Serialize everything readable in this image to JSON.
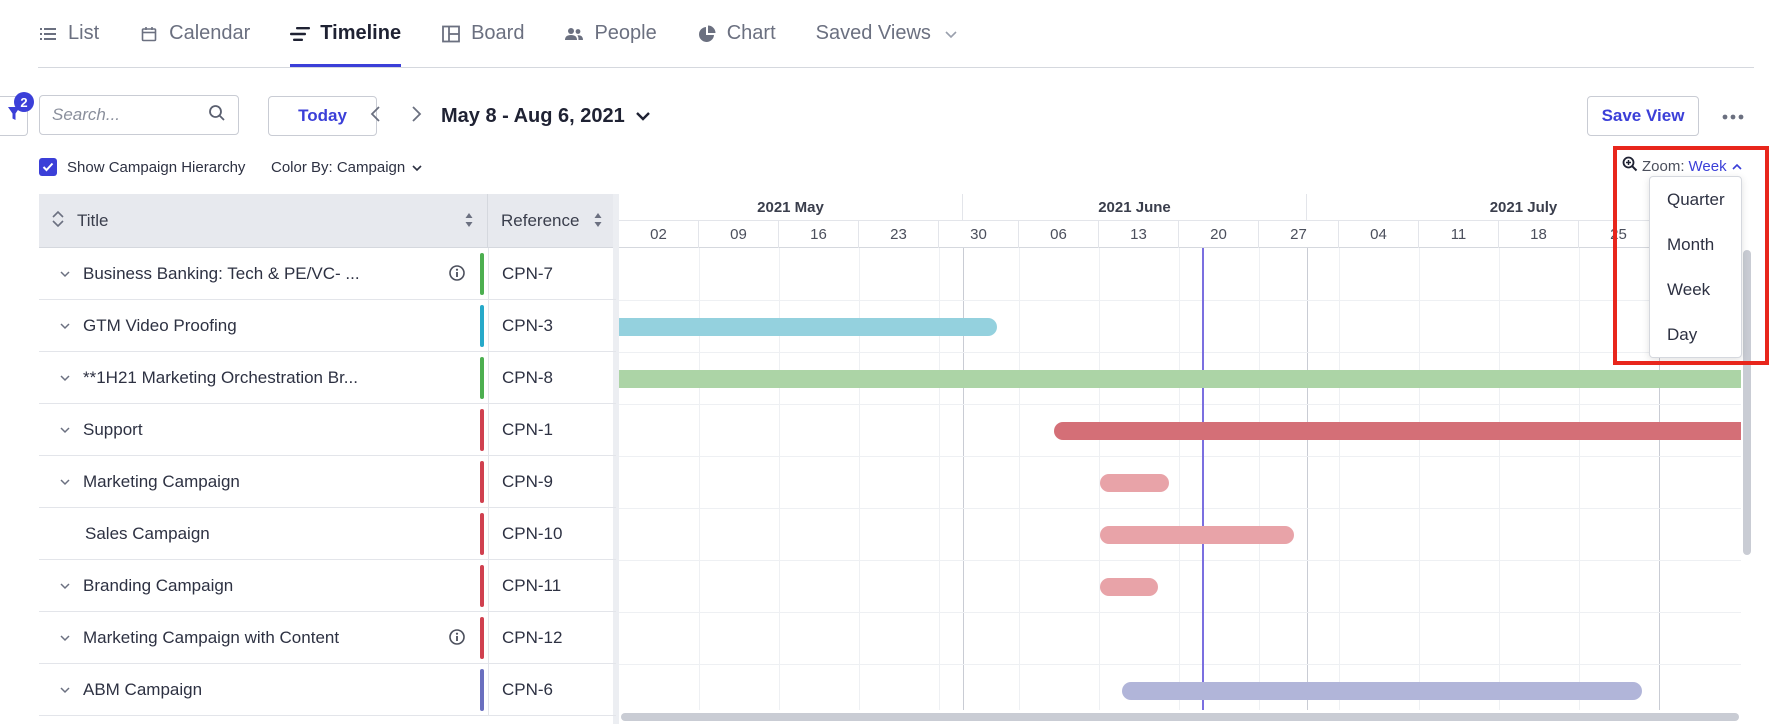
{
  "tabs": [
    {
      "label": "List",
      "icon": "list-icon"
    },
    {
      "label": "Calendar",
      "icon": "calendar-icon"
    },
    {
      "label": "Timeline",
      "icon": "timeline-icon",
      "active": true
    },
    {
      "label": "Board",
      "icon": "board-icon"
    },
    {
      "label": "People",
      "icon": "people-icon"
    },
    {
      "label": "Chart",
      "icon": "pie-chart-icon"
    },
    {
      "label": "Saved Views",
      "icon": "chevron-down-icon"
    }
  ],
  "toolbar": {
    "filter_count": "2",
    "search_placeholder": "Search...",
    "today_label": "Today",
    "date_range": "May 8 - Aug 6, 2021",
    "save_view_label": "Save View"
  },
  "options": {
    "show_hierarchy_label": "Show Campaign Hierarchy",
    "show_hierarchy_checked": true,
    "color_by_label": "Color By: Campaign",
    "zoom_label": "Zoom:",
    "zoom_value": "Week"
  },
  "zoom_menu": [
    "Quarter",
    "Month",
    "Week",
    "Day"
  ],
  "grid": {
    "title_header": "Title",
    "reference_header": "Reference",
    "months": [
      "2021 May",
      "2021 June",
      "2021 July"
    ],
    "weeks": [
      "02",
      "09",
      "16",
      "23",
      "30",
      "06",
      "13",
      "20",
      "27",
      "04",
      "11",
      "18",
      "25"
    ]
  },
  "rows": [
    {
      "title": "Business Banking: Tech & PE/VC- ...",
      "ref": "CPN-7",
      "color": "#4caf50",
      "expandable": true,
      "info": true
    },
    {
      "title": "GTM Video Proofing",
      "ref": "CPN-3",
      "color": "#26a9c9",
      "expandable": true,
      "info": false
    },
    {
      "title": "**1H21 Marketing Orchestration Br...",
      "ref": "CPN-8",
      "color": "#4caf50",
      "expandable": true,
      "info": false
    },
    {
      "title": "Support",
      "ref": "CPN-1",
      "color": "#d0404f",
      "expandable": true,
      "info": false
    },
    {
      "title": "Marketing Campaign",
      "ref": "CPN-9",
      "color": "#d0404f",
      "expandable": true,
      "info": false
    },
    {
      "title": "Sales Campaign",
      "ref": "CPN-10",
      "color": "#d0404f",
      "expandable": false,
      "info": false
    },
    {
      "title": "Branding Campaign",
      "ref": "CPN-11",
      "color": "#d0404f",
      "expandable": true,
      "info": false
    },
    {
      "title": "Marketing Campaign with Content",
      "ref": "CPN-12",
      "color": "#d0404f",
      "expandable": true,
      "info": true
    },
    {
      "title": "ABM Campaign",
      "ref": "CPN-6",
      "color": "#6a6fbf",
      "expandable": true,
      "info": false
    }
  ],
  "bar_colors": {
    "teal": "#94d1de",
    "green": "#acd4a6",
    "red": "#d46f77",
    "pink": "#e8a3a8",
    "purple": "#b1b5d9"
  }
}
